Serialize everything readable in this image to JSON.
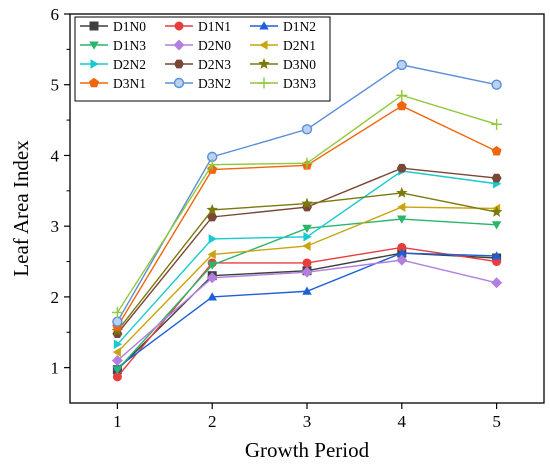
{
  "chart_data": {
    "type": "line",
    "xlabel": "Growth Period",
    "ylabel": "Leaf Area Index",
    "x": [
      1,
      2,
      3,
      4,
      5
    ],
    "xlim": [
      0.5,
      5.5
    ],
    "ylim": [
      0.5,
      6
    ],
    "xticks": [
      "1",
      "2",
      "3",
      "4",
      "5"
    ],
    "yticks": [
      "1",
      "2",
      "3",
      "4",
      "5",
      "6"
    ],
    "grid": false,
    "legend_position": "top-left",
    "series": [
      {
        "name": "D1N0",
        "color": "#3f3f3f",
        "marker": "square",
        "values": [
          0.97,
          2.3,
          2.37,
          2.62,
          2.55
        ]
      },
      {
        "name": "D1N1",
        "color": "#e83d3d",
        "marker": "circle",
        "values": [
          0.87,
          2.48,
          2.48,
          2.7,
          2.5
        ]
      },
      {
        "name": "D1N2",
        "color": "#1f5fd6",
        "marker": "triangle-up",
        "values": [
          1.0,
          2.0,
          2.08,
          2.62,
          2.58
        ]
      },
      {
        "name": "D1N3",
        "color": "#2bb56a",
        "marker": "triangle-down",
        "values": [
          0.97,
          2.45,
          2.97,
          3.1,
          3.02
        ]
      },
      {
        "name": "D2N0",
        "color": "#b27fe0",
        "marker": "diamond",
        "values": [
          1.1,
          2.27,
          2.35,
          2.52,
          2.2
        ]
      },
      {
        "name": "D2N1",
        "color": "#c9a40e",
        "marker": "triangle-left",
        "values": [
          1.22,
          2.6,
          2.72,
          3.27,
          3.25
        ]
      },
      {
        "name": "D2N2",
        "color": "#18c9cf",
        "marker": "triangle-right",
        "values": [
          1.33,
          2.82,
          2.85,
          3.78,
          3.6
        ]
      },
      {
        "name": "D2N3",
        "color": "#7a4636",
        "marker": "hexagon",
        "values": [
          1.48,
          3.13,
          3.27,
          3.82,
          3.68
        ]
      },
      {
        "name": "D3N0",
        "color": "#7a7a0c",
        "marker": "star",
        "values": [
          1.52,
          3.23,
          3.32,
          3.47,
          3.2
        ]
      },
      {
        "name": "D3N1",
        "color": "#f0660e",
        "marker": "pentagon",
        "values": [
          1.58,
          3.8,
          3.86,
          4.7,
          4.06
        ]
      },
      {
        "name": "D3N2",
        "color": "#5a8fd6",
        "marker": "circle-ring",
        "values": [
          1.65,
          3.98,
          4.37,
          5.28,
          5.0
        ]
      },
      {
        "name": "D3N3",
        "color": "#90c93a",
        "marker": "plus",
        "values": [
          1.78,
          3.87,
          3.89,
          4.85,
          4.44
        ]
      }
    ]
  }
}
